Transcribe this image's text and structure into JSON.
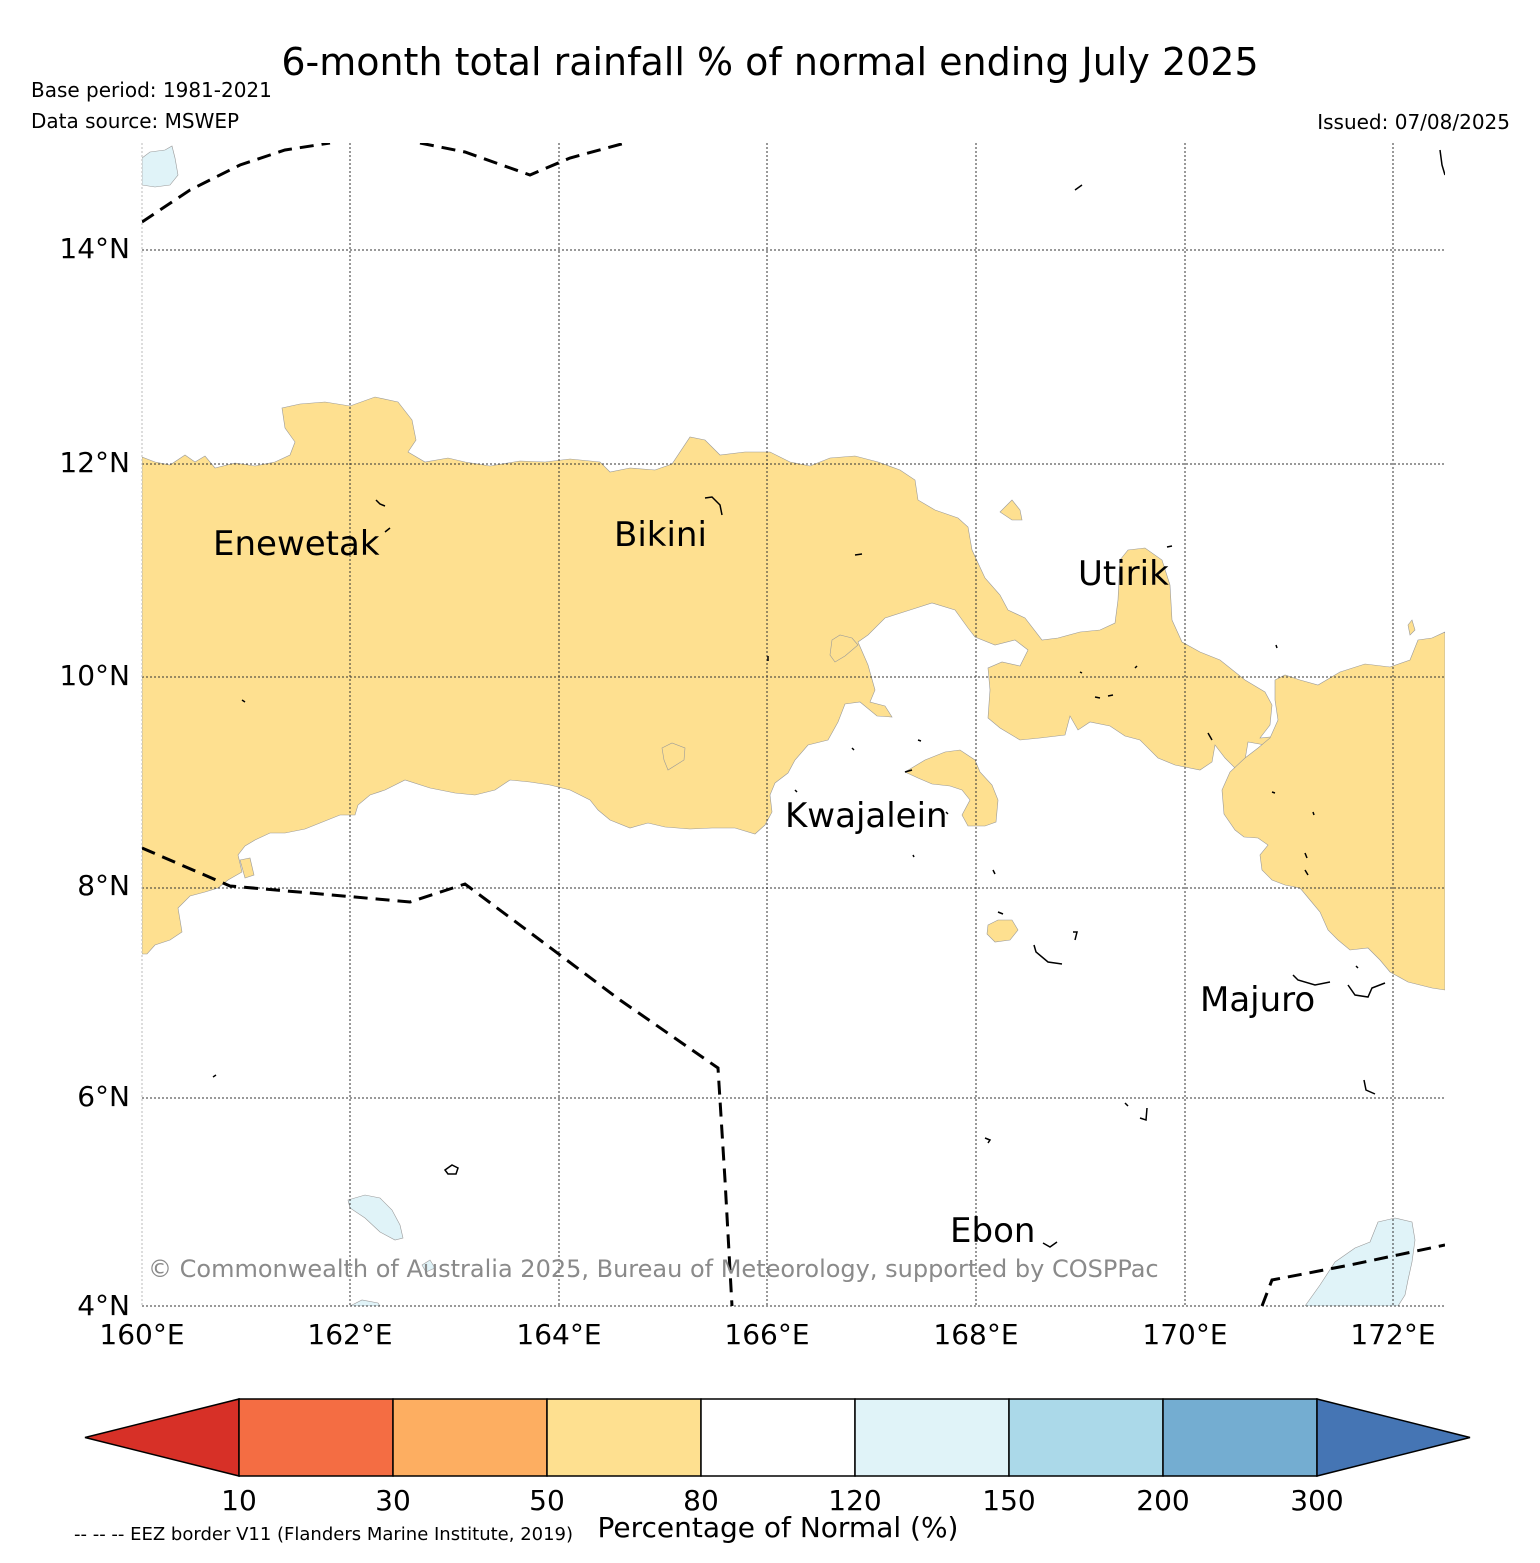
{
  "title": "6-month total rainfall % of normal ending July 2025",
  "base_period": "Base period: 1981-2021",
  "data_source": "Data source: MSWEP",
  "issued": "Issued: 07/08/2025",
  "map": {
    "lat_ticks": [
      "14°N",
      "12°N",
      "10°N",
      "8°N",
      "6°N",
      "4°N"
    ],
    "lon_ticks": [
      "160°E",
      "162°E",
      "164°E",
      "166°E",
      "168°E",
      "170°E",
      "172°E"
    ],
    "places": [
      "Enewetak",
      "Bikini",
      "Utirik",
      "Kwajalein",
      "Majuro",
      "Ebon"
    ],
    "copyright": "© Commonwealth of Australia 2025, Bureau of Meteorology, supported by COSPPac"
  },
  "colorbar": {
    "ticks": [
      "10",
      "30",
      "50",
      "80",
      "120",
      "150",
      "200",
      "300"
    ],
    "colors": [
      "#d73027",
      "#f46d43",
      "#fdae61",
      "#fee090",
      "#ffffff",
      "#e0f3f8",
      "#abd9e9",
      "#74add1",
      "#4575b4"
    ],
    "label": "Percentage of Normal (%)"
  },
  "eez_note": "-- -- -- EEZ border V11 (Flanders Marine Institute, 2019)"
}
